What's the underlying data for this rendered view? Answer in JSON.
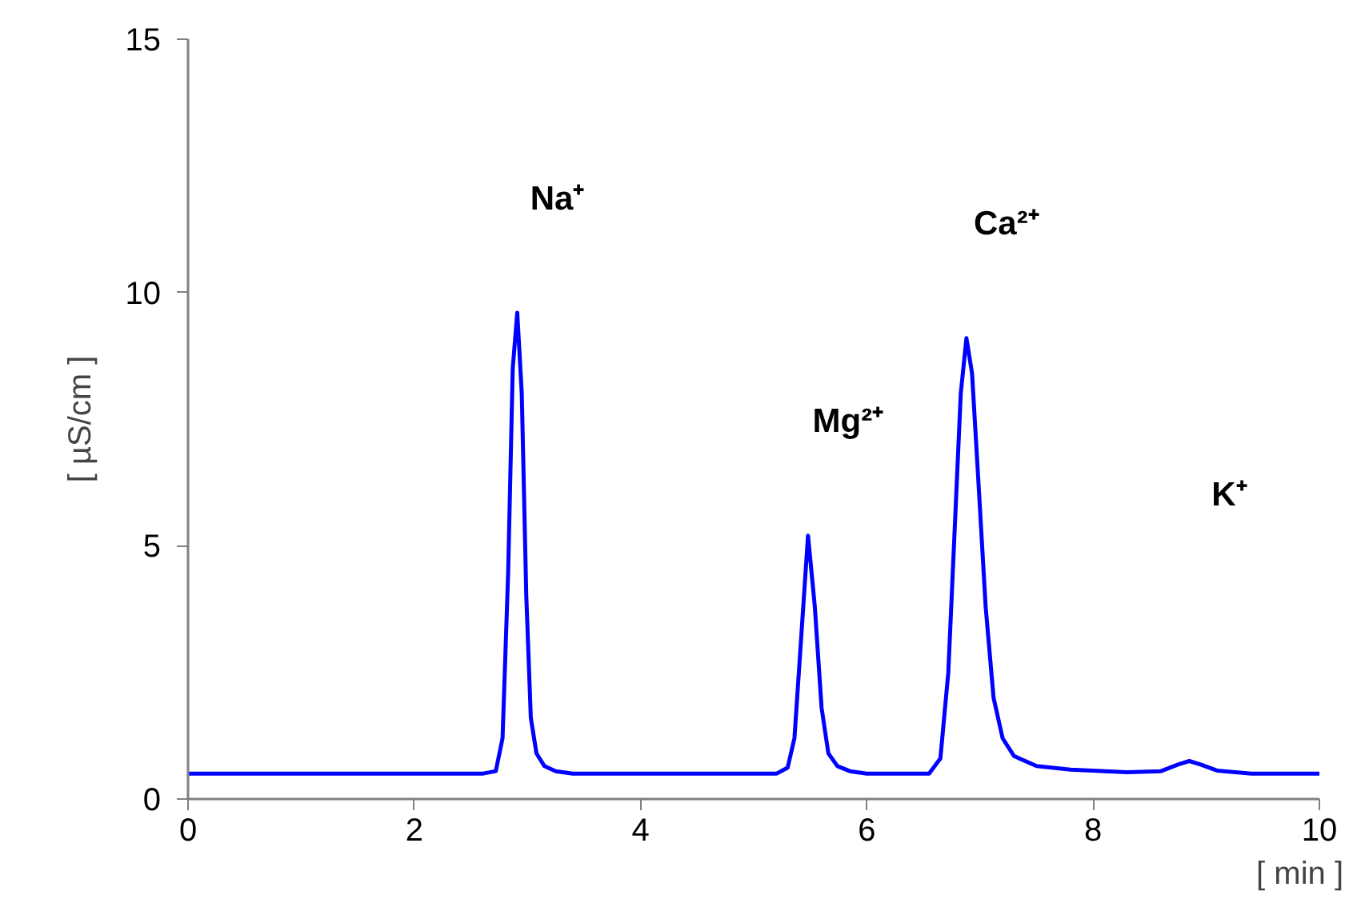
{
  "chart_data": {
    "type": "line",
    "xlabel": "[ min ]",
    "ylabel": "[ µS/cm ]",
    "xlim": [
      0,
      10
    ],
    "xticks": [
      0,
      2,
      4,
      6,
      8,
      10
    ],
    "ylim": [
      0,
      15
    ],
    "yticks": [
      0,
      5,
      10,
      15
    ],
    "grid": false,
    "marker": "none",
    "line_style": "solid",
    "series": [
      {
        "color": "#0000ff",
        "x": [
          0,
          1,
          2,
          2.6,
          2.72,
          2.78,
          2.83,
          2.87,
          2.91,
          2.95,
          2.99,
          3.03,
          3.08,
          3.15,
          3.25,
          3.4,
          3.7,
          4.5,
          5.2,
          5.3,
          5.36,
          5.42,
          5.48,
          5.54,
          5.6,
          5.66,
          5.74,
          5.85,
          6.0,
          6.3,
          6.55,
          6.65,
          6.72,
          6.78,
          6.83,
          6.88,
          6.93,
          6.98,
          7.05,
          7.12,
          7.2,
          7.3,
          7.5,
          7.8,
          8.3,
          8.6,
          8.75,
          8.85,
          8.95,
          9.1,
          9.4,
          10
        ],
        "values": [
          0.5,
          0.5,
          0.5,
          0.5,
          0.55,
          1.2,
          4.5,
          8.5,
          9.6,
          8.0,
          4.0,
          1.6,
          0.9,
          0.65,
          0.55,
          0.5,
          0.5,
          0.5,
          0.5,
          0.62,
          1.2,
          3.2,
          5.2,
          3.8,
          1.8,
          0.9,
          0.65,
          0.55,
          0.5,
          0.5,
          0.5,
          0.8,
          2.5,
          5.5,
          8.0,
          9.1,
          8.4,
          6.5,
          3.8,
          2.0,
          1.2,
          0.85,
          0.65,
          0.58,
          0.53,
          0.55,
          0.68,
          0.75,
          0.68,
          0.56,
          0.5,
          0.5
        ]
      }
    ],
    "annotations": [
      "Na⁺",
      "Mg²⁺",
      "Ca²⁺",
      "K⁺"
    ]
  }
}
